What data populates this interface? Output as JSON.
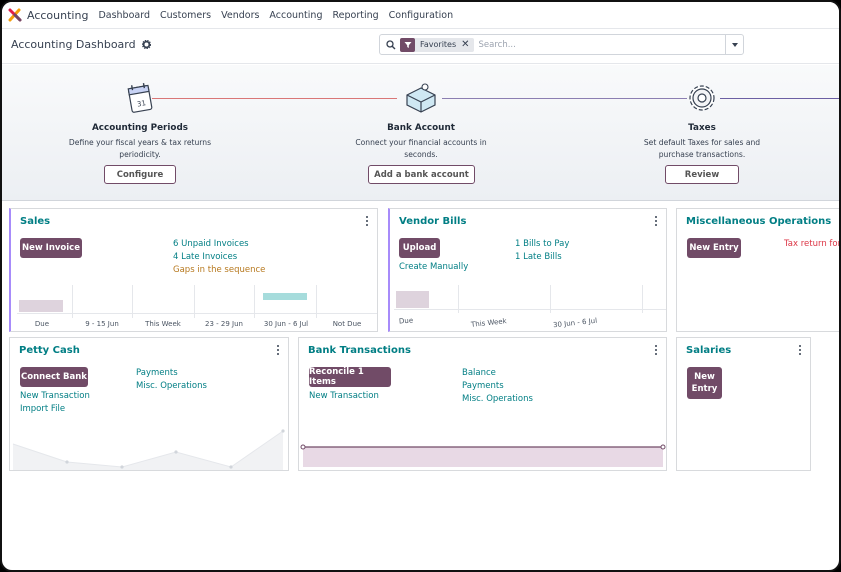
{
  "navbar": {
    "app_name": "Accounting",
    "menu": [
      "Dashboard",
      "Customers",
      "Vendors",
      "Accounting",
      "Reporting",
      "Configuration"
    ]
  },
  "control_panel": {
    "title": "Accounting Dashboard",
    "facet_label": "Favorites",
    "search_placeholder": "Search..."
  },
  "onboarding": {
    "steps": [
      {
        "title": "Accounting Periods",
        "desc": "Define your fiscal years & tax returns periodicity.",
        "button": "Configure",
        "icon": "calendar-icon"
      },
      {
        "title": "Bank Account",
        "desc": "Connect your financial accounts in seconds.",
        "button": "Add a bank account",
        "icon": "bank-puzzle-icon"
      },
      {
        "title": "Taxes",
        "desc": "Set default Taxes for sales and purchase transactions.",
        "button": "Review",
        "icon": "gear-icon"
      }
    ]
  },
  "cards": {
    "sales": {
      "title": "Sales",
      "button": "New Invoice",
      "links": [
        "6 Unpaid Invoices",
        "4 Late Invoices",
        "Gaps in the sequence"
      ],
      "chart_labels": [
        "Due",
        "9 - 15 Jun",
        "This Week",
        "23 - 29 Jun",
        "30 Jun - 6 Jul",
        "Not Due"
      ]
    },
    "vendor_bills": {
      "title": "Vendor Bills",
      "button": "Upload",
      "create_manually": "Create Manually",
      "links": [
        "1 Bills to Pay",
        "1 Late Bills"
      ],
      "chart_labels": [
        "Due",
        "This Week",
        "30 Jun - 6 Jul"
      ]
    },
    "misc_ops": {
      "title": "Miscellaneous Operations",
      "button": "New Entry",
      "alert": "Tax return for A"
    },
    "petty_cash": {
      "title": "Petty Cash",
      "button": "Connect Bank",
      "left_links": [
        "New Transaction",
        "Import File"
      ],
      "right_links": [
        "Payments",
        "Misc. Operations"
      ]
    },
    "bank_transactions": {
      "title": "Bank Transactions",
      "button": "Reconcile 1 Items",
      "left_links": [
        "New Transaction"
      ],
      "right_links": [
        "Balance",
        "Payments",
        "Misc. Operations"
      ]
    },
    "salaries": {
      "title": "Salaries",
      "button_line1": "New",
      "button_line2": "Entry"
    }
  },
  "colors": {
    "brand": "#714b67",
    "link": "#017e84",
    "warning": "#b7791f",
    "danger": "#dc3545"
  }
}
